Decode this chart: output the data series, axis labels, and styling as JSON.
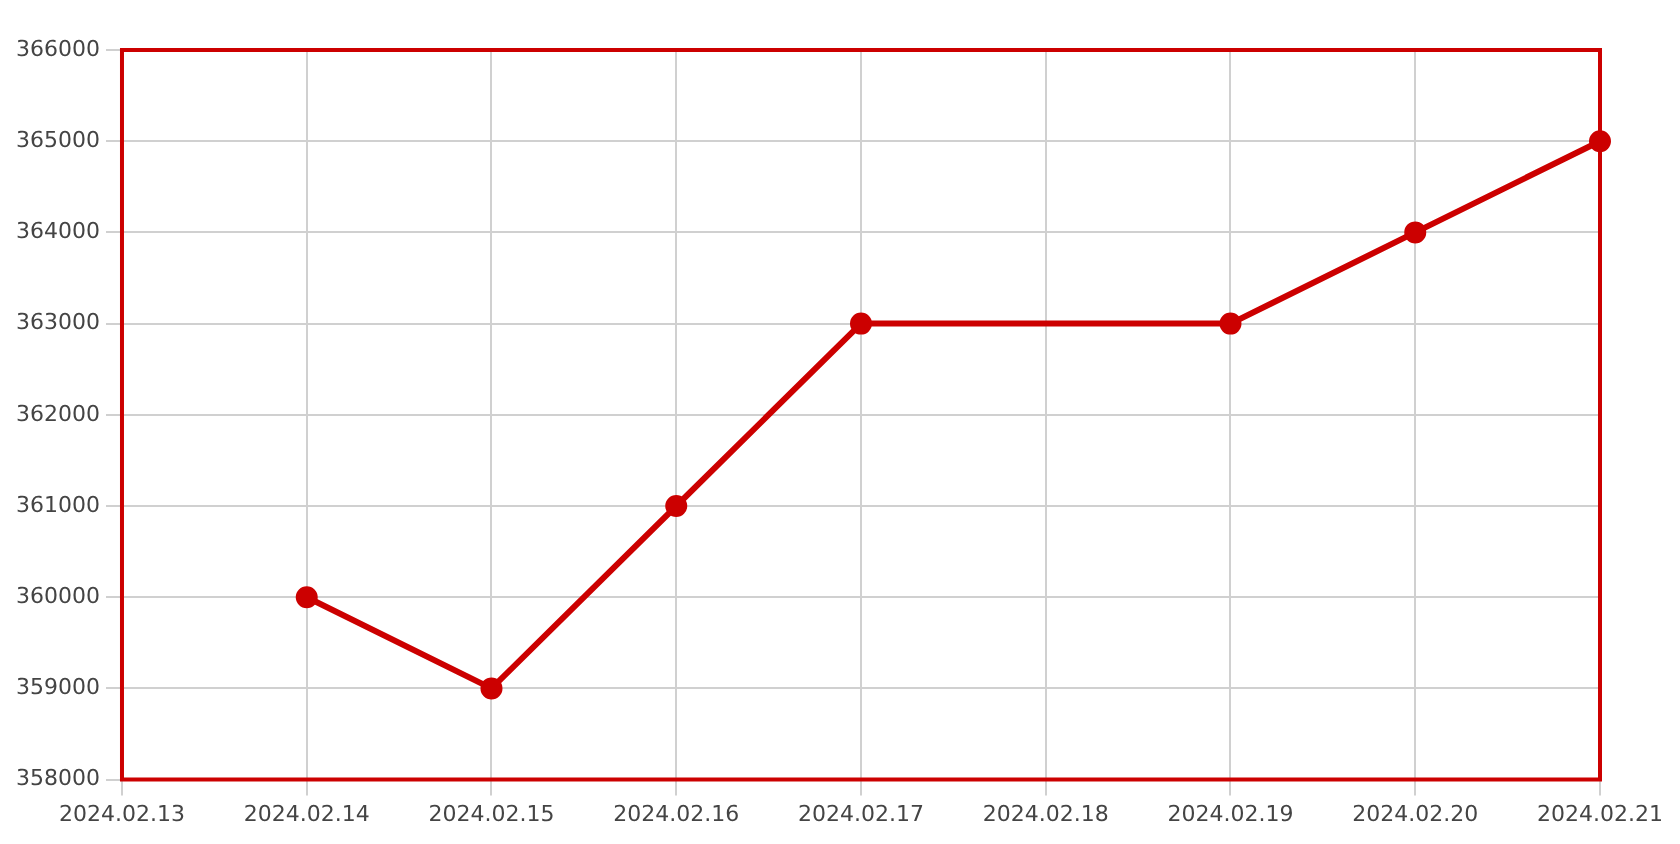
{
  "chart_data": {
    "type": "line",
    "categories": [
      "2024.02.13",
      "2024.02.14",
      "2024.02.15",
      "2024.02.16",
      "2024.02.17",
      "2024.02.18",
      "2024.02.19",
      "2024.02.20",
      "2024.02.21"
    ],
    "series": [
      {
        "color": "#cc0000",
        "values": [
          null,
          360000,
          359000,
          361000,
          363000,
          null,
          363000,
          364000,
          365000
        ]
      }
    ],
    "ylim": [
      358000,
      366000
    ],
    "yticks": [
      358000,
      359000,
      360000,
      361000,
      362000,
      363000,
      364000,
      365000,
      366000
    ],
    "grid": true,
    "legend": false,
    "marker": "circle",
    "line_style": "solid"
  }
}
